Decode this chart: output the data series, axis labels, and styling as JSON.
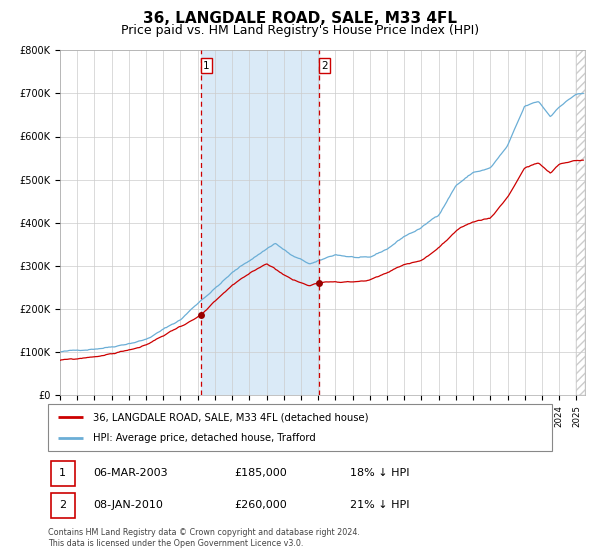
{
  "title": "36, LANGDALE ROAD, SALE, M33 4FL",
  "subtitle": "Price paid vs. HM Land Registry's House Price Index (HPI)",
  "title_fontsize": 11,
  "subtitle_fontsize": 9,
  "ylim": [
    0,
    800000
  ],
  "yticks": [
    0,
    100000,
    200000,
    300000,
    400000,
    500000,
    600000,
    700000,
    800000
  ],
  "ytick_labels": [
    "£0",
    "£100K",
    "£200K",
    "£300K",
    "£400K",
    "£500K",
    "£600K",
    "£700K",
    "£800K"
  ],
  "hpi_color": "#6baed6",
  "price_color": "#cc0000",
  "vline_color": "#cc0000",
  "shade_color": "#daeaf7",
  "grid_color": "#cccccc",
  "purchase1_date_num": 2003.17,
  "purchase1_price": 185000,
  "purchase2_date_num": 2010.02,
  "purchase2_price": 260000,
  "legend_entries": [
    "36, LANGDALE ROAD, SALE, M33 4FL (detached house)",
    "HPI: Average price, detached house, Trafford"
  ],
  "table_rows": [
    {
      "num": "1",
      "date": "06-MAR-2003",
      "price": "£185,000",
      "note": "18% ↓ HPI"
    },
    {
      "num": "2",
      "date": "08-JAN-2010",
      "price": "£260,000",
      "note": "21% ↓ HPI"
    }
  ],
  "footnote": "Contains HM Land Registry data © Crown copyright and database right 2024.\nThis data is licensed under the Open Government Licence v3.0.",
  "xstart": 1995.0,
  "xend": 2025.5
}
